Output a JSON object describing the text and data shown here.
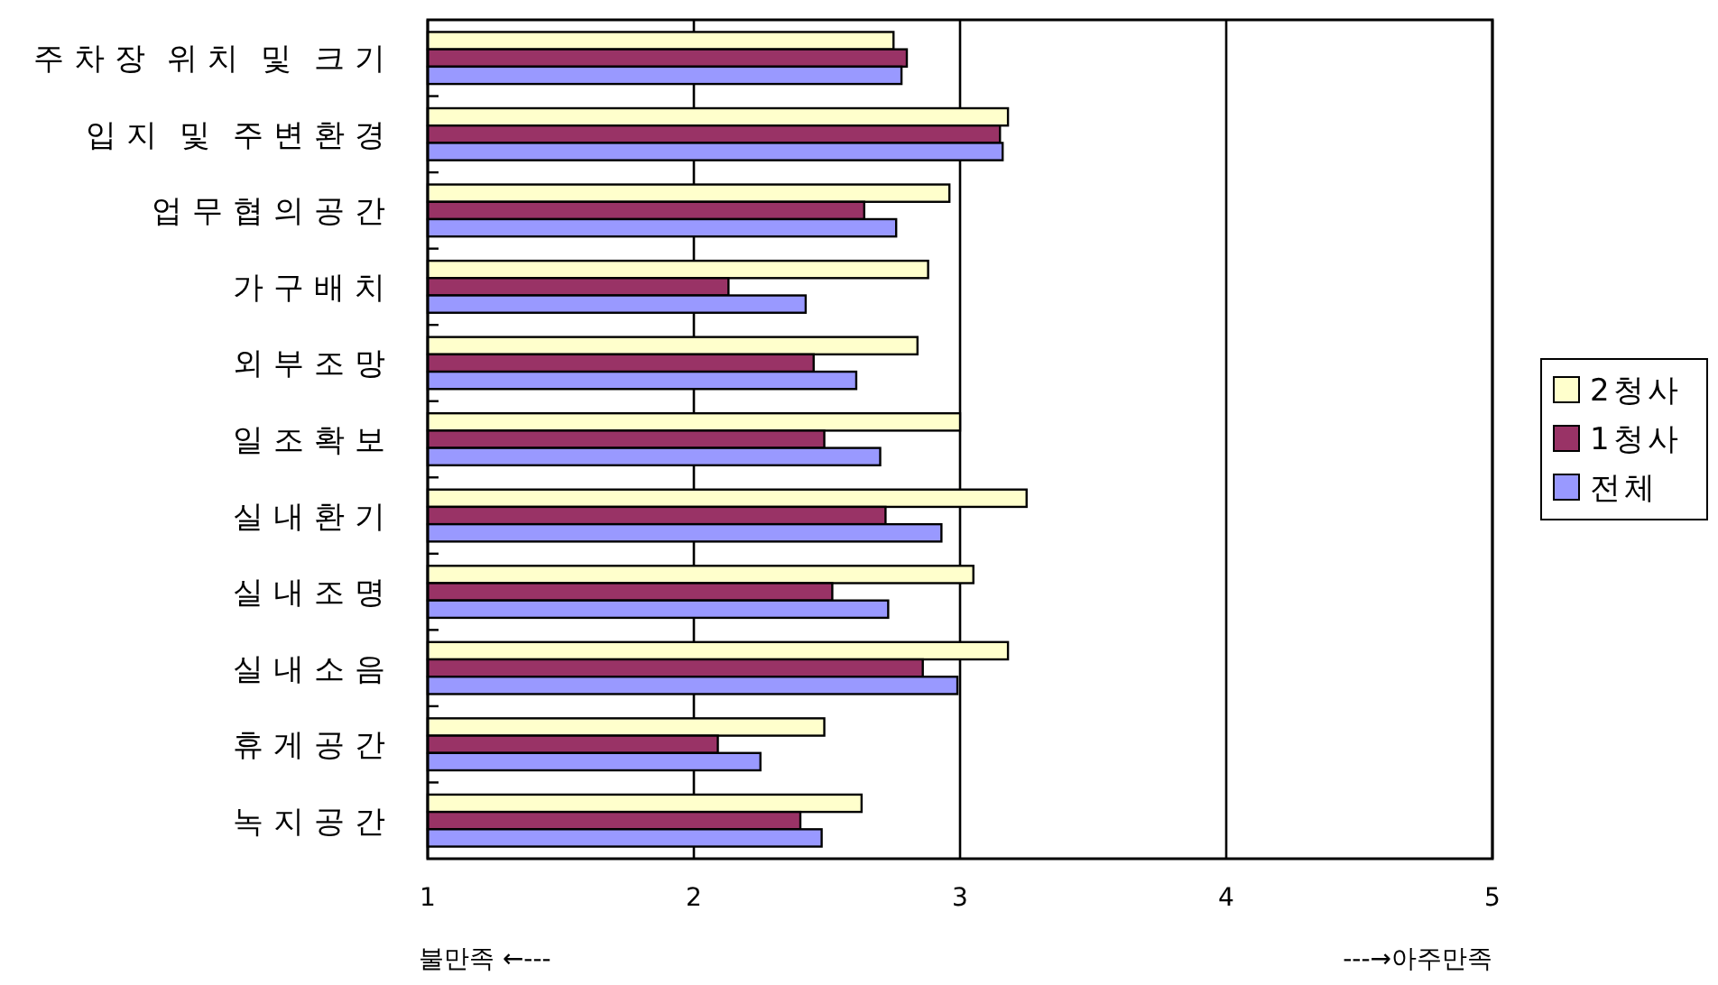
{
  "chart_data": {
    "type": "bar",
    "orientation": "horizontal",
    "categories": [
      "주차장 위치 및 크기",
      "입지 및 주변환경",
      "업무협의공간",
      "가구배치",
      "외부조망",
      "일조확보",
      "실내환기",
      "실내조명",
      "실내소음",
      "휴게공간",
      "녹지공간"
    ],
    "series": [
      {
        "name": "2청사",
        "color": "#ffffcc",
        "values": [
          2.75,
          3.18,
          2.96,
          2.88,
          2.84,
          3.0,
          3.25,
          3.05,
          3.18,
          2.49,
          2.63
        ]
      },
      {
        "name": "1청사",
        "color": "#993366",
        "values": [
          2.8,
          3.15,
          2.64,
          2.13,
          2.45,
          2.49,
          2.72,
          2.52,
          2.86,
          2.09,
          2.4
        ]
      },
      {
        "name": "전체",
        "color": "#9999ff",
        "values": [
          2.78,
          3.16,
          2.76,
          2.42,
          2.61,
          2.7,
          2.93,
          2.73,
          2.99,
          2.25,
          2.48
        ]
      }
    ],
    "xlim": [
      1,
      5
    ],
    "xticks": [
      1,
      2,
      3,
      4,
      5
    ],
    "grid": "x",
    "legend": "right",
    "annotations": [
      "불만족 ←---",
      "---→아주만족"
    ]
  }
}
